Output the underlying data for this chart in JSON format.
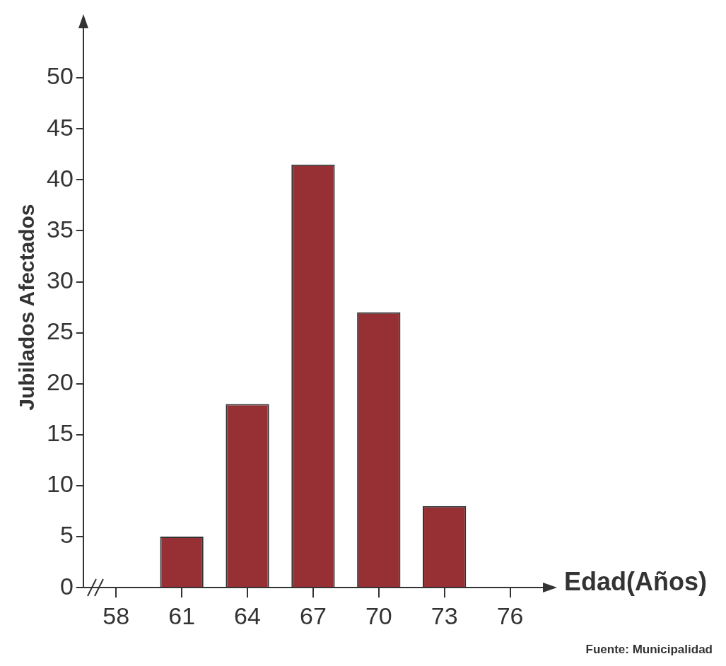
{
  "chart_data": {
    "type": "bar",
    "xlabel": "Edad(Años)",
    "ylabel": "Jubilados Afectados",
    "categories": [
      "58",
      "61",
      "64",
      "67",
      "70",
      "73",
      "76"
    ],
    "values": [
      null,
      5,
      18,
      41.5,
      27,
      8,
      null
    ],
    "color": "#973035",
    "ylim": [
      0,
      55
    ],
    "yticks": [
      0,
      5,
      10,
      15,
      20,
      25,
      30,
      35,
      40,
      45,
      50
    ],
    "grid": false,
    "annotations": [
      "Fuente: Municipalidad"
    ]
  }
}
